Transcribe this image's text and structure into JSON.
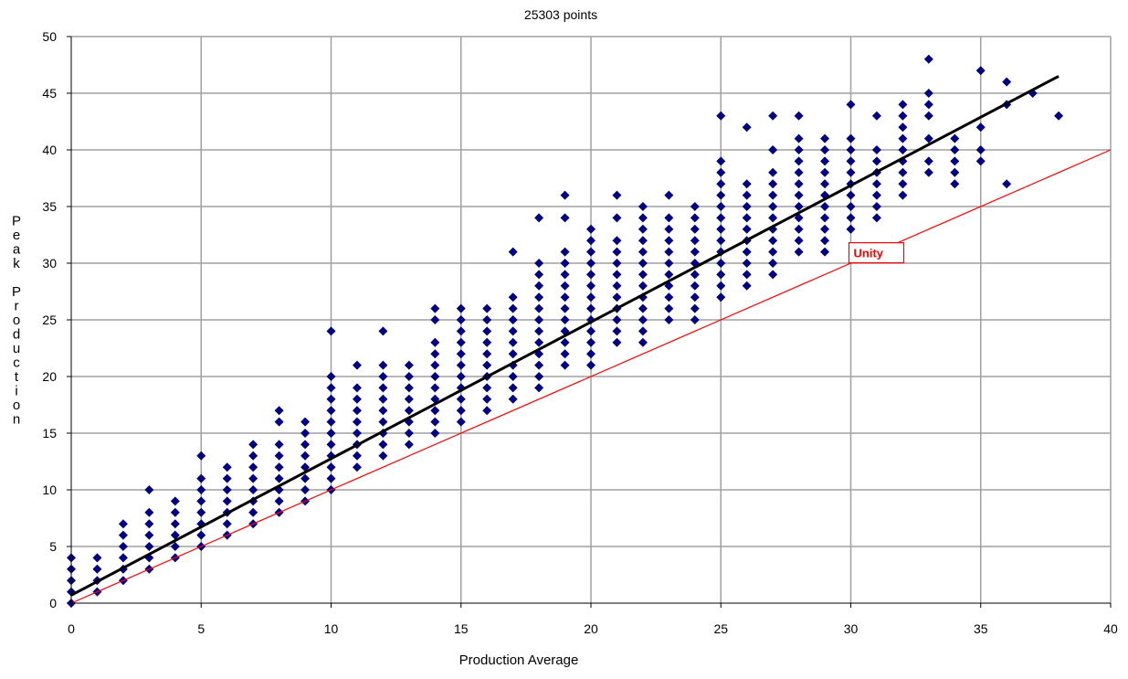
{
  "chart_data": {
    "type": "scatter",
    "title": "25303 points",
    "xlabel": "Production Average",
    "ylabel": "Peak Production",
    "xlim": [
      0,
      40
    ],
    "ylim": [
      0,
      50
    ],
    "xticks": [
      0,
      5,
      10,
      15,
      20,
      25,
      30,
      35,
      40
    ],
    "yticks": [
      0,
      5,
      10,
      15,
      20,
      25,
      30,
      35,
      40,
      45,
      50
    ],
    "grid": true,
    "colors": {
      "points": "#000080",
      "trend": "#000000",
      "unity": "#ff0000"
    },
    "columns": [
      {
        "x": 0,
        "y": [
          0,
          1,
          2,
          3,
          4
        ]
      },
      {
        "x": 1,
        "y": [
          1,
          2,
          3,
          4
        ]
      },
      {
        "x": 2,
        "y": [
          2,
          3,
          4,
          5,
          6,
          7
        ]
      },
      {
        "x": 3,
        "y": [
          3,
          4,
          5,
          6,
          7,
          8,
          10
        ]
      },
      {
        "x": 4,
        "y": [
          4,
          5,
          6,
          7,
          8,
          9
        ]
      },
      {
        "x": 5,
        "y": [
          5,
          6,
          7,
          8,
          9,
          10,
          11,
          13
        ]
      },
      {
        "x": 6,
        "y": [
          6,
          7,
          8,
          9,
          10,
          11,
          12
        ]
      },
      {
        "x": 7,
        "y": [
          7,
          8,
          9,
          10,
          11,
          12,
          13,
          14
        ]
      },
      {
        "x": 8,
        "y": [
          8,
          9,
          10,
          11,
          12,
          13,
          14,
          16,
          17
        ]
      },
      {
        "x": 9,
        "y": [
          9,
          10,
          11,
          12,
          13,
          14,
          15,
          16
        ]
      },
      {
        "x": 10,
        "y": [
          10,
          11,
          12,
          13,
          14,
          15,
          16,
          17,
          18,
          19,
          20,
          24
        ]
      },
      {
        "x": 11,
        "y": [
          12,
          13,
          14,
          15,
          16,
          17,
          18,
          19,
          21
        ]
      },
      {
        "x": 12,
        "y": [
          13,
          14,
          15,
          16,
          17,
          18,
          19,
          20,
          21,
          24
        ]
      },
      {
        "x": 13,
        "y": [
          14,
          15,
          16,
          17,
          18,
          19,
          20,
          21
        ]
      },
      {
        "x": 14,
        "y": [
          15,
          16,
          17,
          18,
          19,
          20,
          21,
          22,
          23,
          25,
          26
        ]
      },
      {
        "x": 15,
        "y": [
          16,
          17,
          18,
          19,
          20,
          21,
          22,
          23,
          24,
          25,
          26
        ]
      },
      {
        "x": 16,
        "y": [
          17,
          18,
          19,
          20,
          21,
          22,
          23,
          24,
          25,
          26
        ]
      },
      {
        "x": 17,
        "y": [
          18,
          19,
          20,
          21,
          22,
          23,
          24,
          25,
          26,
          27,
          31
        ]
      },
      {
        "x": 18,
        "y": [
          19,
          20,
          21,
          22,
          23,
          24,
          25,
          26,
          27,
          28,
          29,
          30,
          34
        ]
      },
      {
        "x": 19,
        "y": [
          21,
          22,
          23,
          24,
          25,
          26,
          27,
          28,
          29,
          30,
          31,
          34,
          36
        ]
      },
      {
        "x": 20,
        "y": [
          21,
          22,
          23,
          24,
          25,
          26,
          27,
          28,
          29,
          30,
          31,
          32,
          33
        ]
      },
      {
        "x": 21,
        "y": [
          23,
          24,
          25,
          26,
          27,
          28,
          29,
          30,
          31,
          32,
          34,
          36
        ]
      },
      {
        "x": 22,
        "y": [
          23,
          24,
          25,
          26,
          27,
          28,
          29,
          30,
          31,
          32,
          33,
          34,
          35
        ]
      },
      {
        "x": 23,
        "y": [
          25,
          26,
          27,
          28,
          29,
          30,
          31,
          32,
          33,
          34,
          36
        ]
      },
      {
        "x": 24,
        "y": [
          25,
          26,
          27,
          28,
          29,
          30,
          31,
          32,
          33,
          34,
          35
        ]
      },
      {
        "x": 25,
        "y": [
          27,
          28,
          29,
          30,
          31,
          32,
          33,
          34,
          35,
          36,
          37,
          38,
          39,
          43
        ]
      },
      {
        "x": 26,
        "y": [
          28,
          29,
          30,
          31,
          32,
          33,
          34,
          35,
          36,
          37,
          42
        ]
      },
      {
        "x": 27,
        "y": [
          29,
          30,
          31,
          32,
          33,
          34,
          35,
          36,
          37,
          38,
          40,
          43
        ]
      },
      {
        "x": 28,
        "y": [
          31,
          32,
          33,
          34,
          35,
          36,
          37,
          38,
          39,
          40,
          41,
          43
        ]
      },
      {
        "x": 29,
        "y": [
          31,
          32,
          33,
          34,
          35,
          36,
          37,
          38,
          39,
          40,
          41
        ]
      },
      {
        "x": 30,
        "y": [
          33,
          34,
          35,
          36,
          37,
          38,
          39,
          40,
          41,
          44
        ]
      },
      {
        "x": 31,
        "y": [
          34,
          35,
          36,
          37,
          38,
          39,
          40,
          43
        ]
      },
      {
        "x": 32,
        "y": [
          36,
          37,
          38,
          39,
          40,
          41,
          42,
          43,
          44
        ]
      },
      {
        "x": 33,
        "y": [
          38,
          39,
          41,
          43,
          44,
          45,
          48
        ]
      },
      {
        "x": 34,
        "y": [
          37,
          38,
          39,
          40,
          41
        ]
      },
      {
        "x": 35,
        "y": [
          39,
          40,
          42,
          47
        ]
      },
      {
        "x": 36,
        "y": [
          37,
          44,
          46
        ]
      },
      {
        "x": 37,
        "y": [
          45
        ]
      },
      {
        "x": 38,
        "y": [
          43
        ]
      }
    ],
    "trendline": {
      "x": [
        0,
        38
      ],
      "y": [
        0.7,
        46.5
      ]
    },
    "unity_line": {
      "x": [
        0,
        40
      ],
      "y": [
        0,
        40
      ],
      "label": "Unity",
      "label_at": [
        30,
        31
      ]
    }
  }
}
